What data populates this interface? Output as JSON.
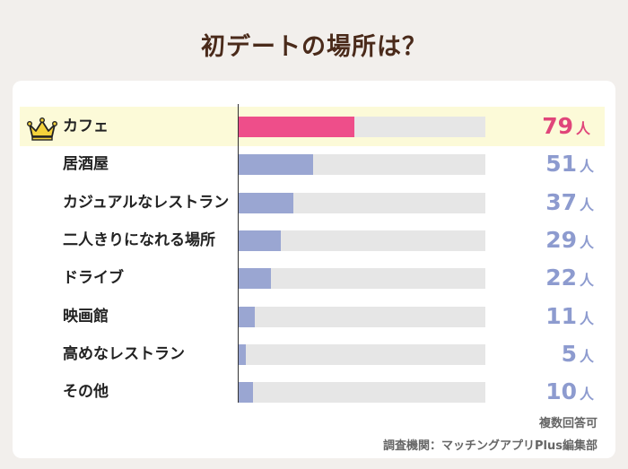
{
  "page_title": "初デートの場所は？",
  "unit": "人",
  "footnote_1": "複数回答可",
  "footnote_2": "調査機関：マッチングアプリPlus編集部",
  "colors": {
    "top_bar": "#ee4e8a",
    "bar": "#9aa6d2",
    "top_value": "#e0457a",
    "value": "#8d9bcf",
    "track": "#e6e6e6",
    "highlight": "#fcfad8"
  },
  "icons": {
    "top_rank": "crown-icon"
  },
  "chart_data": {
    "type": "bar",
    "orientation": "horizontal",
    "title": "初デートの場所は？",
    "categories": [
      "カフェ",
      "居酒屋",
      "カジュアルなレストラン",
      "二人きりになれる場所",
      "ドライブ",
      "映画館",
      "高めなレストラン",
      "その他"
    ],
    "values": [
      79,
      51,
      37,
      29,
      22,
      11,
      5,
      10
    ],
    "xlim": [
      0,
      168
    ],
    "grid": false,
    "legend": "none"
  }
}
